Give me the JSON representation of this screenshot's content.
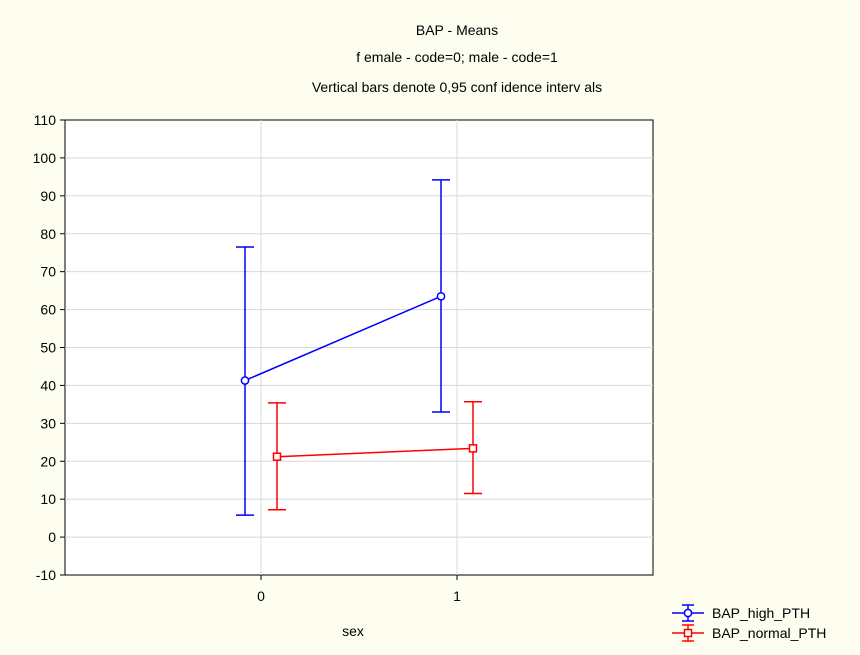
{
  "chart_data": {
    "type": "line",
    "title": "BAP -  Means",
    "subtitle": "f emale - code=0; male - code=1",
    "note": "Vertical bars denote 0,95 conf idence interv als",
    "xlabel": "sex",
    "ylabel": "",
    "categories": [
      "0",
      "1"
    ],
    "ylim": [
      -10,
      110
    ],
    "yticks": [
      "-10",
      "0",
      "10",
      "20",
      "30",
      "40",
      "50",
      "60",
      "70",
      "80",
      "90",
      "100",
      "110"
    ],
    "grid": true,
    "legend_position": "bottom-right",
    "series": [
      {
        "name": "BAP_high_PTH",
        "color": "#0000ff",
        "marker": "circle",
        "values": [
          41.3,
          63.5
        ],
        "ci_low": [
          5.8,
          33.0
        ],
        "ci_high": [
          76.5,
          94.2
        ]
      },
      {
        "name": "BAP_normal_PTH",
        "color": "#ff0000",
        "marker": "square",
        "values": [
          21.2,
          23.4
        ],
        "ci_low": [
          7.2,
          11.5
        ],
        "ci_high": [
          35.4,
          35.7
        ]
      }
    ]
  }
}
